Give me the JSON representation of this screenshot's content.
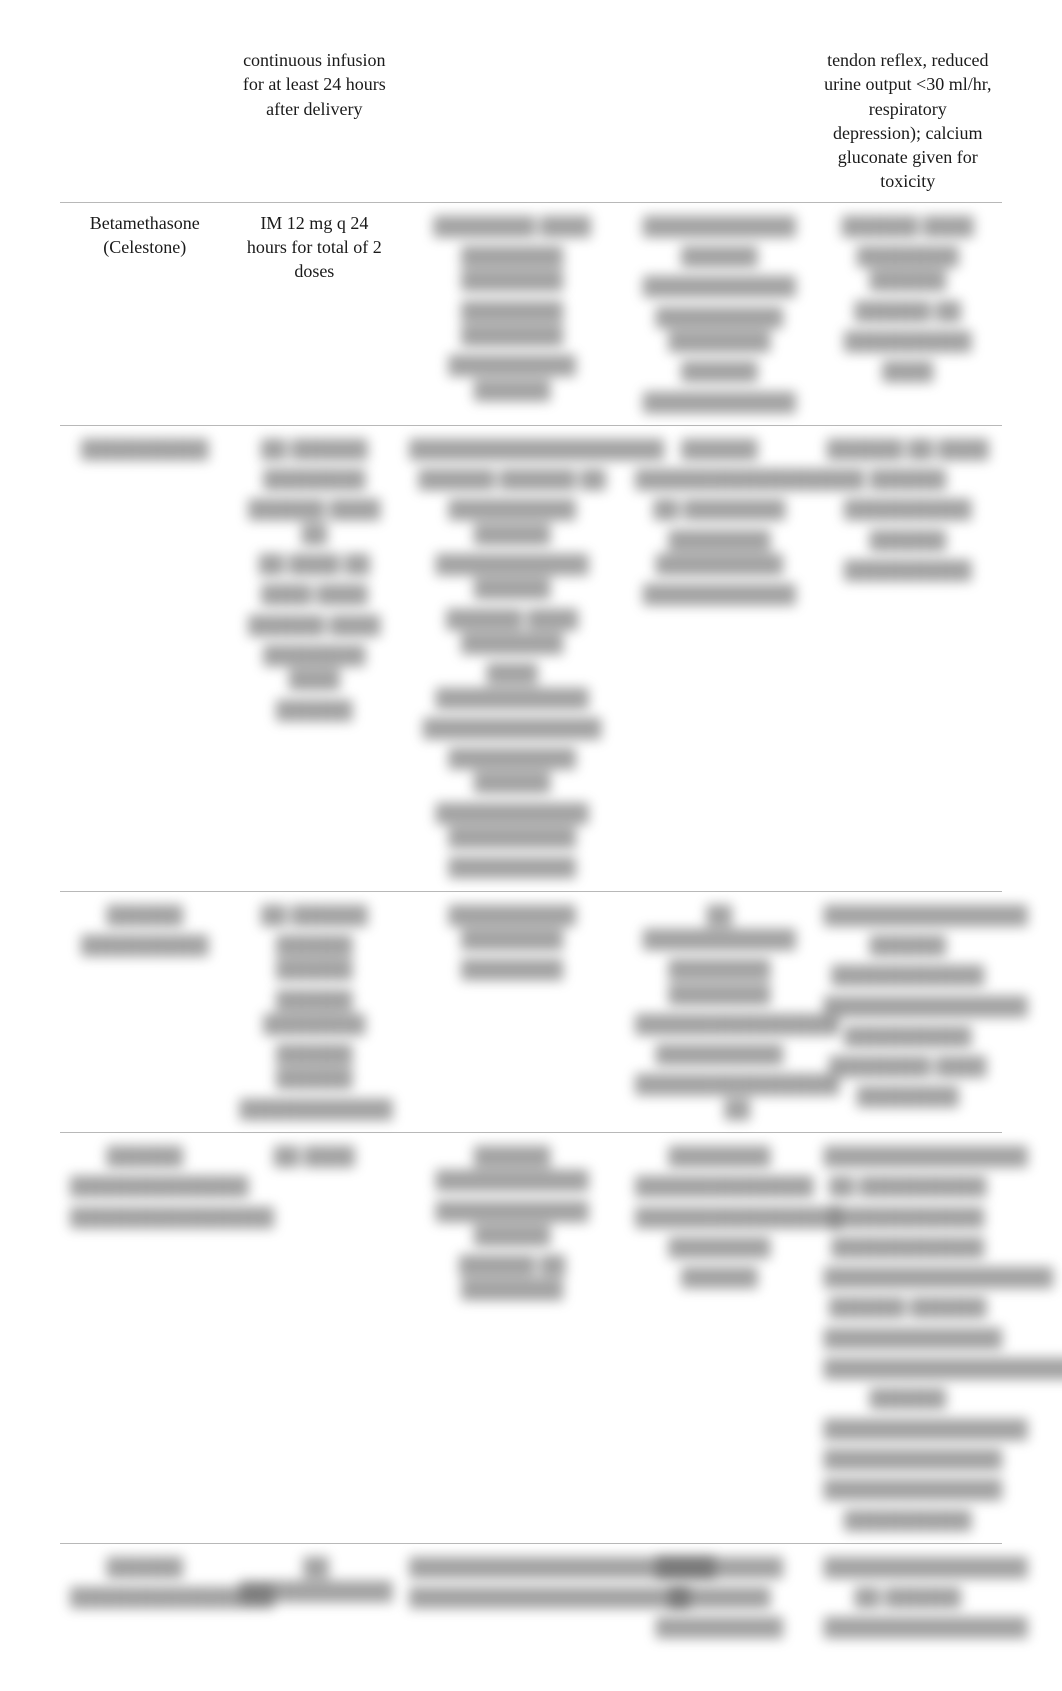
{
  "table": {
    "columns_count": 5,
    "font_family": "serif",
    "font_size_pt": 14,
    "border_color": "#b8b8b8",
    "text_color": "#1a1a1a",
    "background_color": "#ffffff",
    "blur_color": "#555555",
    "rows": [
      {
        "c1": "",
        "c2": "continuous infusion for at least 24 hours after delivery",
        "c3": "",
        "c4": "",
        "c5": "tendon reflex, reduced urine output <30 ml/hr, respiratory depression); calcium gluconate given for toxicity"
      },
      {
        "c1": "Betamethasone (Celestone)",
        "c2": "IM 12 mg q 24 hours for total of 2 doses",
        "c3_blur": [
          "████████ ████",
          "████████ ████████",
          "████████ ████████",
          "██████████ ██████"
        ],
        "c4_blur": [
          "████████████",
          "██████",
          "████████████",
          "██████████ ████████",
          "██████",
          "████████████"
        ],
        "c5_blur": [
          "██████ ████",
          "████████ ██████",
          "██████ ██",
          "██████████",
          "████"
        ]
      },
      {
        "c1_blur": [
          "██████████"
        ],
        "c2_blur": [
          "██ ██████",
          "████████",
          "██████ ████ ██",
          "██ ████ ██",
          "████ ████",
          "██████ ████",
          "████████ ████",
          "██████"
        ],
        "c3_blur": [
          "████████████████████",
          "██████ ██████ ██",
          "██████████ ██████",
          "████████████ ██████",
          "██████ ████ ████████",
          "████ ████████████",
          "██████████████",
          "██████████ ██████",
          "████████████ ██████████",
          "██████████"
        ],
        "c4_blur": [
          "██████",
          "██████████████████",
          "██ ████████",
          "████████ ██████████",
          "████████████"
        ],
        "c5_blur": [
          "██████ ██ ████",
          "██████",
          "██████████",
          "██████",
          "██████████"
        ]
      },
      {
        "c1_blur": [
          "██████",
          "██████████"
        ],
        "c2_blur": [
          "██ ██████",
          "██████ ██████",
          "██████ ████████",
          "██████ ██████",
          "████████████"
        ],
        "c3_blur": [
          "██████████ ████████",
          "████████"
        ],
        "c4_blur": [
          "██ ████████████",
          "████████ ████████",
          "████████████████",
          "██████████",
          "████████████████ ██"
        ],
        "c5_blur": [
          "████████████████",
          "██████",
          "████████████",
          "████████████████",
          "██████████",
          "████████ ████",
          "████████"
        ]
      },
      {
        "c1_blur": [
          "██████",
          "██████████████",
          "████████████████"
        ],
        "c2_blur": [
          "██ ████"
        ],
        "c3_blur": [
          "██████ ████████████",
          "████████████ ██████",
          "██████ ██ ████████"
        ],
        "c4_blur": [
          "████████",
          "██████████████",
          "████████████████",
          "████████",
          "██████"
        ],
        "c5_blur": [
          "████████████████",
          "██ ██████████",
          "████████████",
          "████████████",
          "██████████████████",
          "██████ ██████",
          "██████████████",
          "████████████████████",
          "██████",
          "████████████████",
          "██████████████",
          "██████████████",
          "██████████"
        ]
      },
      {
        "c1_blur": [
          "██████",
          "████████████████"
        ],
        "c2_blur": [
          "██ ████████████"
        ],
        "c3_blur": [
          "████████████████████████",
          "██████████████████████"
        ],
        "c4_blur": [
          "██████████",
          "████████",
          "██████████"
        ],
        "c5_blur": [
          "████████████████",
          "██ ██████",
          "████████████████"
        ]
      }
    ]
  }
}
